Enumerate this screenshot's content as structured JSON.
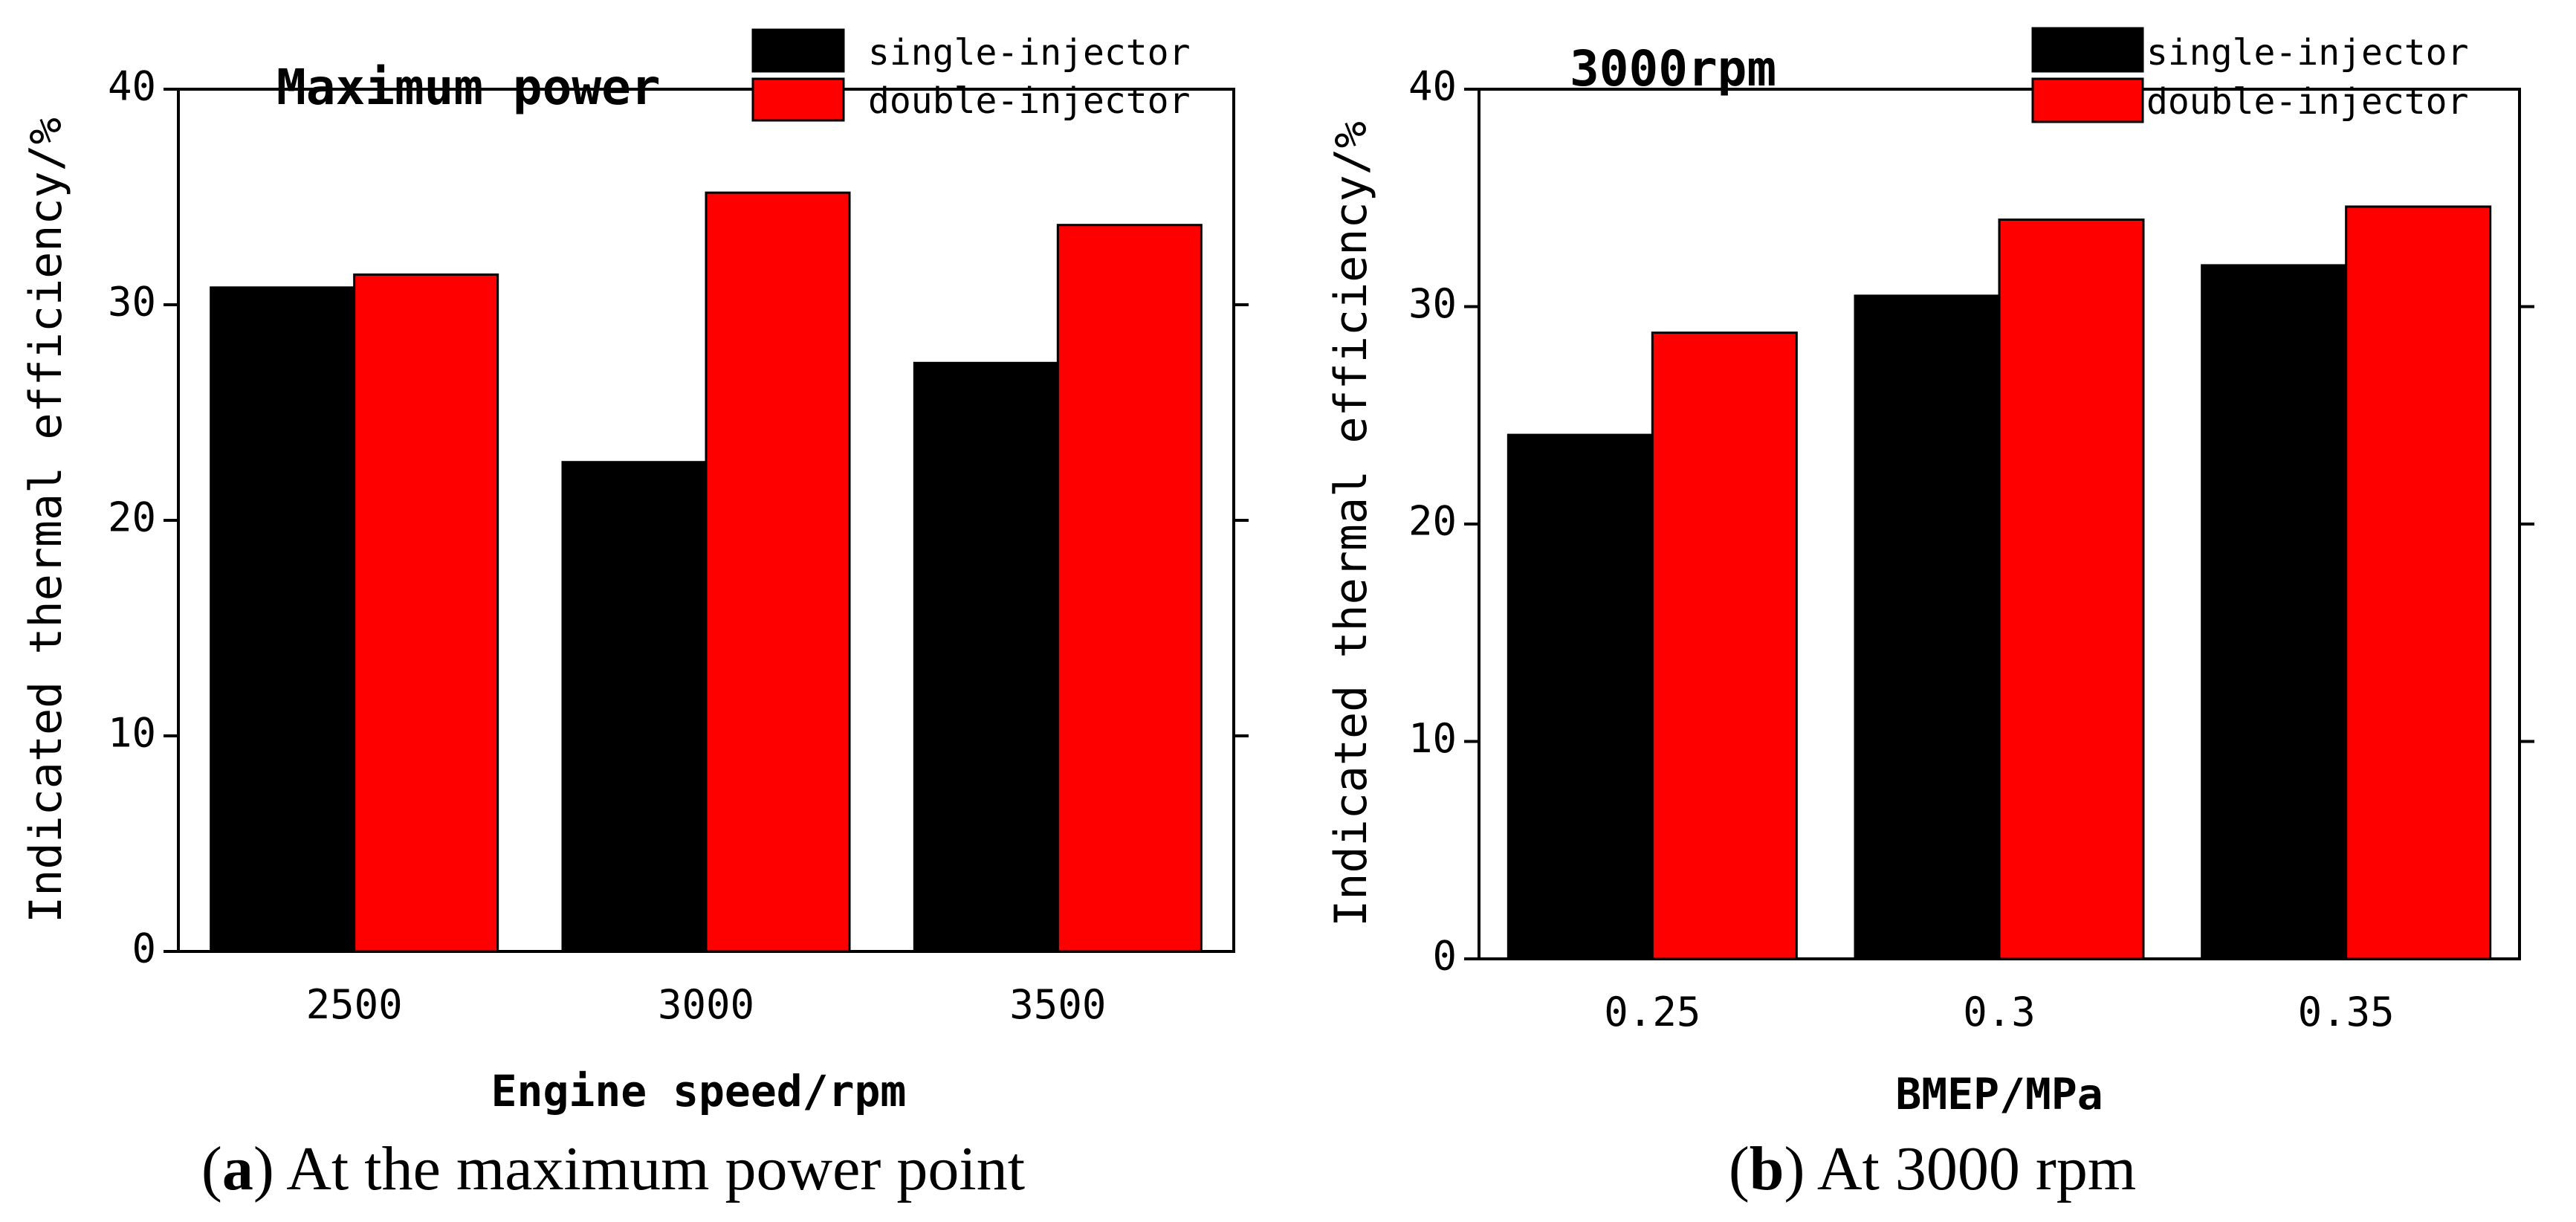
{
  "chart_data": [
    {
      "type": "bar",
      "title": "Maximum power",
      "xlabel": "Engine speed/rpm",
      "ylabel": "Indicated thermal efficiency/%",
      "categories": [
        "2500",
        "3000",
        "3500"
      ],
      "ylim": [
        0,
        40
      ],
      "yticks": [
        0,
        10,
        20,
        30,
        40
      ],
      "series": [
        {
          "name": "single-injector",
          "color": "#000000",
          "values": [
            30.8,
            22.7,
            27.3
          ]
        },
        {
          "name": "double-injector",
          "color": "#ff0000",
          "values": [
            31.4,
            35.2,
            33.7
          ]
        }
      ],
      "legend": "top-right",
      "caption": {
        "label": "a",
        "text": "At the maximum power point"
      }
    },
    {
      "type": "bar",
      "title": "3000rpm",
      "xlabel": "BMEP/MPa",
      "ylabel": "Indicated thermal efficiency/%",
      "categories": [
        "0.25",
        "0.3",
        "0.35"
      ],
      "ylim": [
        0,
        40
      ],
      "yticks": [
        0,
        10,
        20,
        30,
        40
      ],
      "series": [
        {
          "name": "single-injector",
          "color": "#000000",
          "values": [
            24.1,
            30.5,
            31.9
          ]
        },
        {
          "name": "double-injector",
          "color": "#ff0000",
          "values": [
            28.8,
            34.0,
            34.6
          ]
        }
      ],
      "legend": "top-right",
      "caption": {
        "label": "b",
        "text": "At 3000 rpm"
      }
    }
  ]
}
